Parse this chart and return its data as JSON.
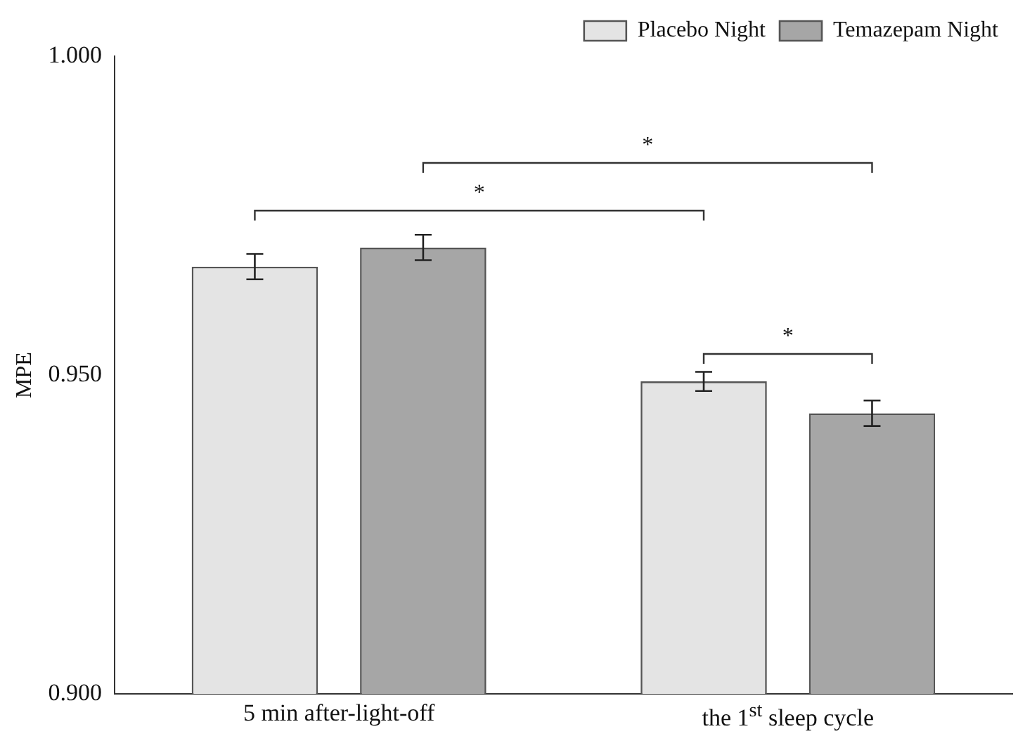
{
  "chart_data": {
    "type": "bar",
    "categories": [
      "5 min after-light-off",
      "the 1$^{st}$ sleep cycle"
    ],
    "series": [
      {
        "name": "Placebo Night",
        "color": "#e4e4e4",
        "values": [
          0.967,
          0.949
        ],
        "errors": [
          0.002,
          0.0015
        ]
      },
      {
        "name": "Temazepam Night",
        "color": "#a6a6a6",
        "values": [
          0.97,
          0.944
        ],
        "errors": [
          0.002,
          0.002
        ]
      }
    ],
    "ylabel": "MPE",
    "ylim": [
      0.9,
      1.0
    ],
    "yticks": [
      {
        "value": 0.9,
        "label": "0.900"
      },
      {
        "value": 0.95,
        "label": "0.950"
      },
      {
        "value": 1.0,
        "label": "1.000"
      }
    ],
    "annotations": [
      "*",
      "*",
      "*"
    ],
    "grid": false,
    "legend": "top right"
  }
}
